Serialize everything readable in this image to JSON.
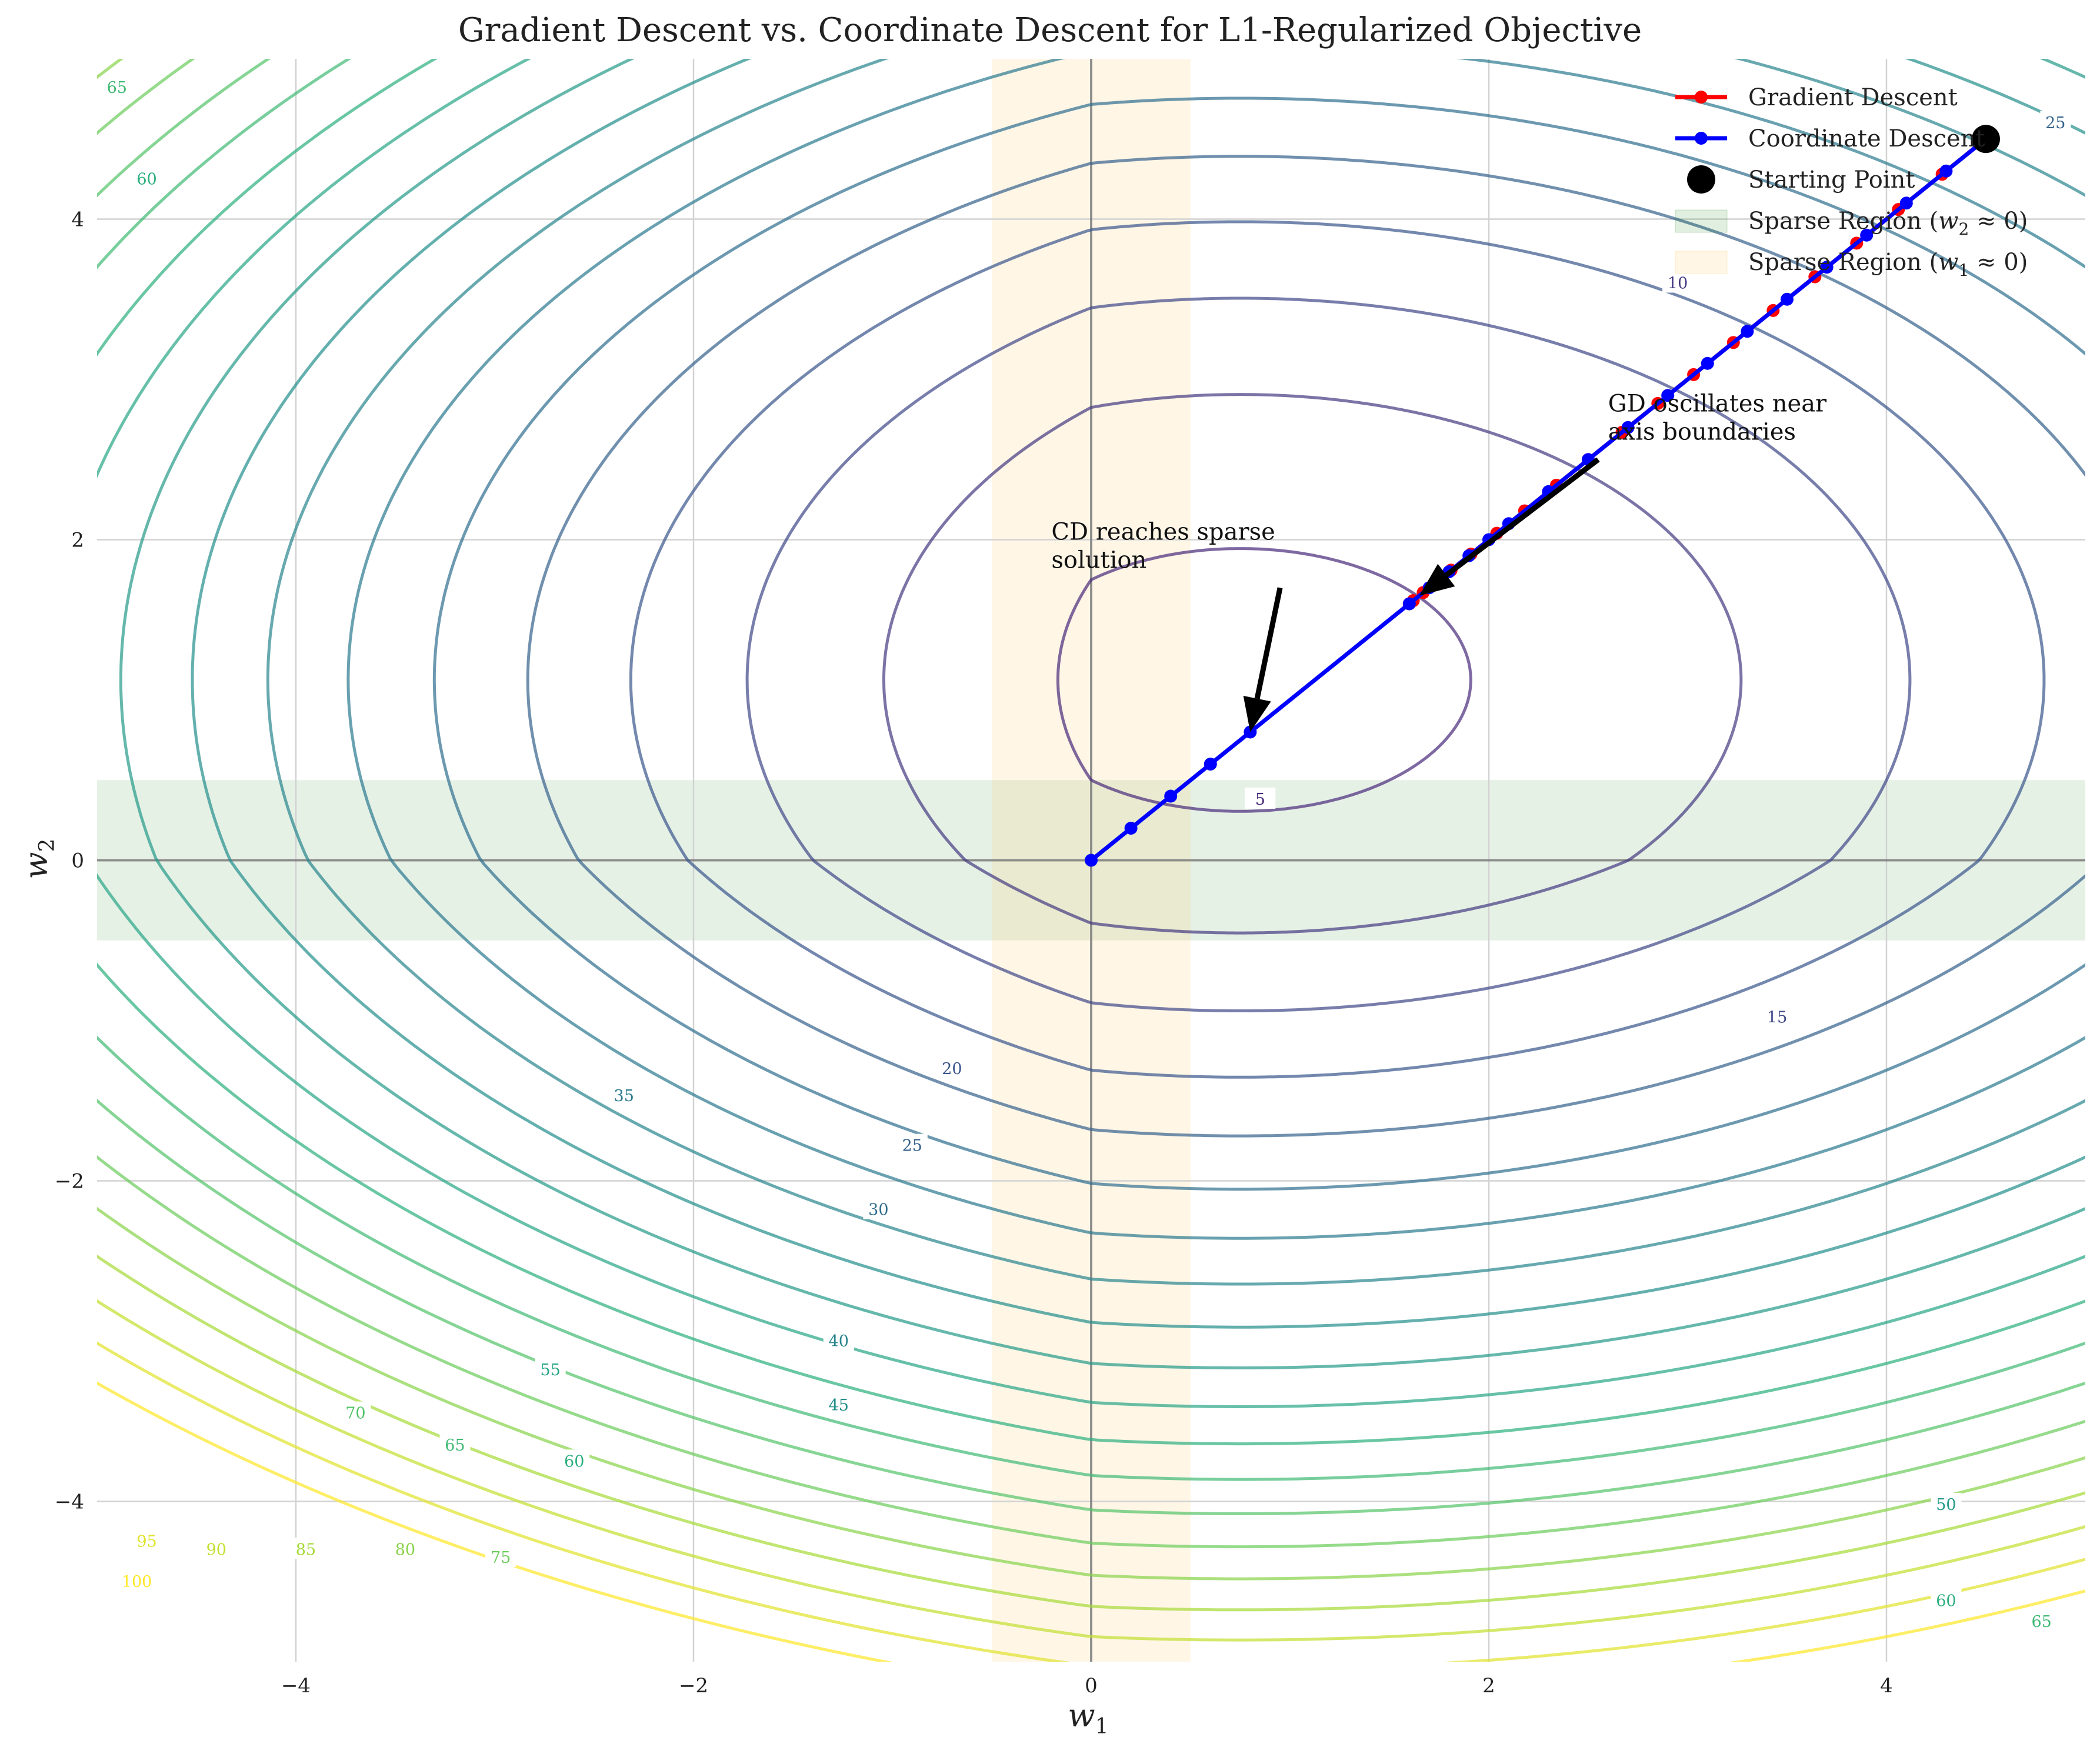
{
  "chart_data": {
    "type": "contour",
    "title": "Gradient Descent vs. Coordinate Descent for L1-Regularized Objective",
    "xlabel": "w",
    "xlabel_sub": "1",
    "ylabel": "w",
    "ylabel_sub": "2",
    "xlim": [
      -5,
      5
    ],
    "ylim": [
      -5,
      5
    ],
    "xticks": [
      -4,
      -2,
      0,
      2,
      4
    ],
    "yticks": [
      -4,
      -2,
      0,
      2,
      4
    ],
    "xtick_labels": [
      "−4",
      "−2",
      "0",
      "2",
      "4"
    ],
    "ytick_labels": [
      "−4",
      "−2",
      "0",
      "2",
      "4"
    ],
    "grid": true,
    "contour": {
      "center": [
        1.5,
        1.5
      ],
      "levels": [
        5,
        10,
        15,
        20,
        25,
        30,
        35,
        40,
        45,
        50,
        55,
        60,
        65,
        70,
        75,
        80,
        85,
        90,
        95,
        100
      ],
      "colormap": [
        "#472a7a",
        "#3b528b",
        "#2c728e",
        "#21918c",
        "#28ae80",
        "#5ec962",
        "#addc30",
        "#fde725"
      ],
      "visible_labels": [
        {
          "level": 5,
          "at": [
            0.85,
            0.38
          ]
        },
        {
          "level": 10,
          "at": [
            2.95,
            3.6
          ]
        },
        {
          "level": 15,
          "at": [
            3.45,
            -0.98
          ]
        },
        {
          "level": 20,
          "at": [
            -0.7,
            -1.3
          ]
        },
        {
          "level": 25,
          "at": [
            -0.9,
            -1.78
          ]
        },
        {
          "level": 25,
          "at": [
            4.85,
            4.6
          ]
        },
        {
          "level": 30,
          "at": [
            -1.07,
            -2.18
          ]
        },
        {
          "level": 35,
          "at": [
            -2.35,
            -1.47
          ]
        },
        {
          "level": 40,
          "at": [
            -1.27,
            -3.0
          ]
        },
        {
          "level": 45,
          "at": [
            -1.27,
            -3.4
          ]
        },
        {
          "level": 50,
          "at": [
            4.3,
            -4.02
          ]
        },
        {
          "level": 55,
          "at": [
            -2.72,
            -3.18
          ]
        },
        {
          "level": 60,
          "at": [
            -2.6,
            -3.75
          ]
        },
        {
          "level": 60,
          "at": [
            4.3,
            -4.62
          ]
        },
        {
          "level": 60,
          "at": [
            -4.75,
            4.25
          ]
        },
        {
          "level": 65,
          "at": [
            -3.2,
            -3.65
          ]
        },
        {
          "level": 65,
          "at": [
            4.78,
            -4.75
          ]
        },
        {
          "level": 65,
          "at": [
            -4.9,
            4.82
          ]
        },
        {
          "level": 70,
          "at": [
            -3.7,
            -3.45
          ]
        },
        {
          "level": 75,
          "at": [
            -2.97,
            -4.35
          ]
        },
        {
          "level": 80,
          "at": [
            -3.45,
            -4.3
          ]
        },
        {
          "level": 85,
          "at": [
            -3.95,
            -4.3
          ]
        },
        {
          "level": 90,
          "at": [
            -4.4,
            -4.3
          ]
        },
        {
          "level": 95,
          "at": [
            -4.75,
            -4.25
          ]
        },
        {
          "level": 100,
          "at": [
            -4.8,
            -4.5
          ]
        }
      ]
    },
    "sparse_regions": [
      {
        "name": "Sparse Region ($w_2 \\approx 0$)",
        "axis": "y",
        "range": [
          -0.5,
          0.5
        ],
        "color": "#2e8b2e",
        "opacity": 0.12
      },
      {
        "name": "Sparse Region ($w_1 \\approx 0$)",
        "axis": "x",
        "range": [
          -0.5,
          0.5
        ],
        "color": "#ffc14d",
        "opacity": 0.14
      }
    ],
    "series": [
      {
        "name": "Gradient Descent",
        "color": "#ff0000",
        "x": [
          4.5,
          4.28,
          4.06,
          3.85,
          3.64,
          3.43,
          3.23,
          3.03,
          2.85,
          2.67,
          2.5,
          2.34,
          2.18,
          2.04,
          1.91,
          1.81,
          1.73,
          1.67,
          1.62,
          1.6
        ],
        "y": [
          4.5,
          4.28,
          4.06,
          3.85,
          3.64,
          3.43,
          3.23,
          3.03,
          2.85,
          2.67,
          2.5,
          2.34,
          2.18,
          2.04,
          1.91,
          1.81,
          1.73,
          1.67,
          1.62,
          1.6
        ]
      },
      {
        "name": "Coordinate Descent",
        "color": "#0000ff",
        "x": [
          4.5,
          4.3,
          4.1,
          3.9,
          3.7,
          3.5,
          3.3,
          3.1,
          2.9,
          2.7,
          2.5,
          2.3,
          2.1,
          2.0,
          1.9,
          1.8,
          1.7,
          1.6,
          0.8,
          0.6,
          0.4,
          0.2,
          0.0
        ],
        "y": [
          4.5,
          4.3,
          4.1,
          3.9,
          3.7,
          3.5,
          3.3,
          3.1,
          2.9,
          2.7,
          2.5,
          2.3,
          2.1,
          2.0,
          1.9,
          1.8,
          1.7,
          1.6,
          0.8,
          0.6,
          0.4,
          0.2,
          0.0
        ]
      }
    ],
    "starting_point": {
      "name": "Starting Point",
      "x": 4.5,
      "y": 4.5,
      "color": "#000000"
    },
    "annotations": [
      {
        "lines": [
          "CD reaches sparse",
          "solution"
        ],
        "text_at": [
          -0.2,
          2.0
        ],
        "tail": [
          0.95,
          1.7
        ],
        "head": [
          0.8,
          0.8
        ]
      },
      {
        "lines": [
          "GD oscillates near",
          "axis boundaries"
        ],
        "text_at": [
          2.6,
          2.8
        ],
        "tail": [
          2.55,
          2.5
        ],
        "head": [
          1.65,
          1.65
        ]
      }
    ],
    "legend": {
      "placement": "top-right",
      "entries": [
        {
          "label": "Gradient Descent",
          "kind": "line",
          "color": "#ff0000"
        },
        {
          "label": "Coordinate Descent",
          "kind": "line",
          "color": "#0000ff"
        },
        {
          "label": "Starting Point",
          "kind": "marker",
          "color": "#000000"
        },
        {
          "label": "Sparse Region ($w_2 \\approx 0$)",
          "label_prefix": "Sparse Region (",
          "label_var": "w",
          "label_sub": "2",
          "label_suffix": " ≈ 0)",
          "kind": "patch",
          "color": "#2e8b2e"
        },
        {
          "label": "Sparse Region ($w_1 \\approx 0$)",
          "label_prefix": "Sparse Region (",
          "label_var": "w",
          "label_sub": "1",
          "label_suffix": " ≈ 0)",
          "kind": "patch",
          "color": "#ffc14d"
        }
      ]
    }
  }
}
